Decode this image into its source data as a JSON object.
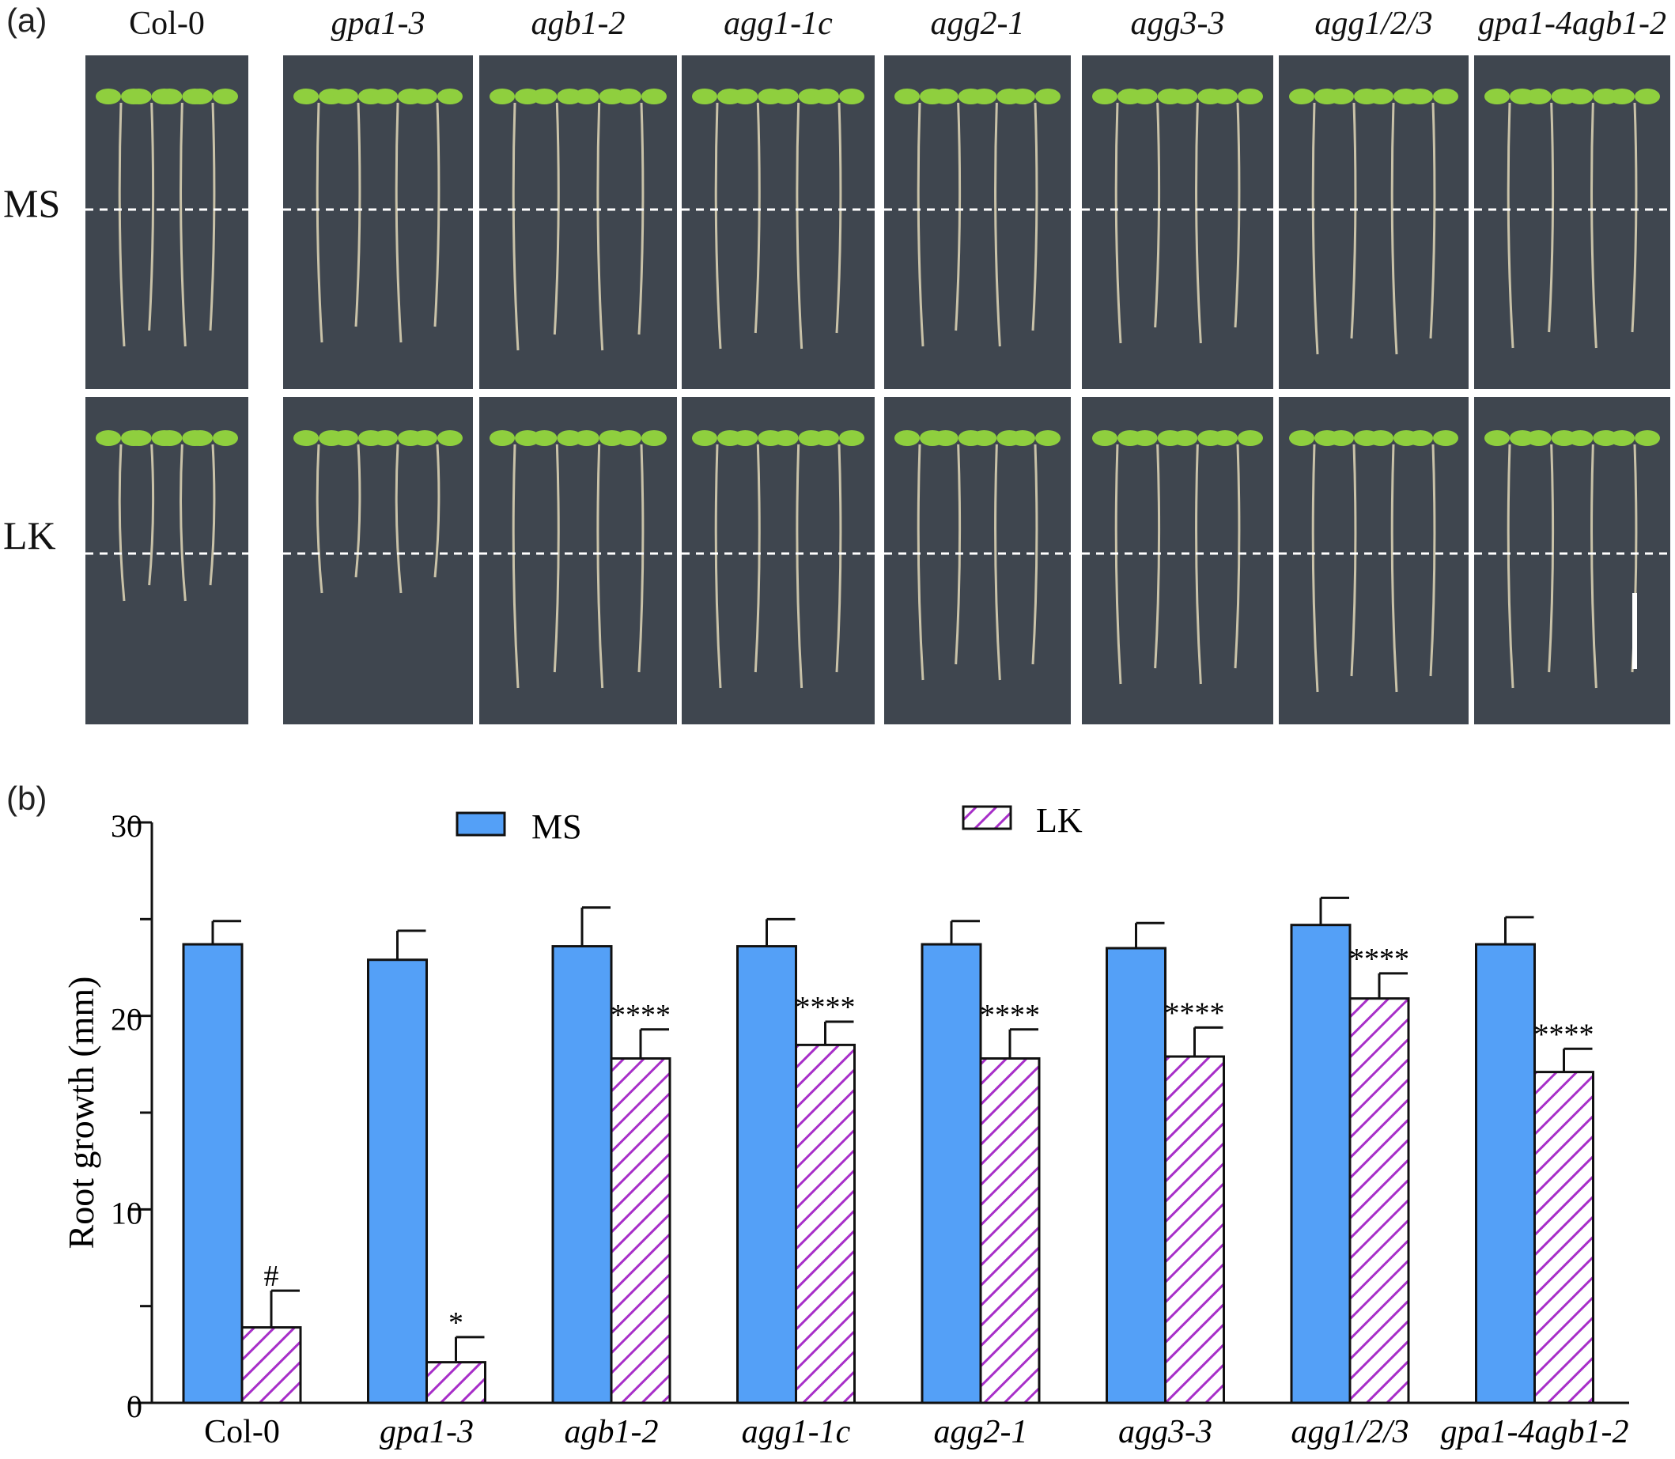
{
  "figure": {
    "panel_a_label": "(a)",
    "panel_b_label": "(b)",
    "genotypes": [
      "Col-0",
      "gpa1-3",
      "agb1-2",
      "agg1-1c",
      "agg2-1",
      "agg3-3",
      "agg1/2/3",
      "gpa1-4agb1-2"
    ],
    "italic_genotypes": [
      false,
      true,
      true,
      true,
      true,
      true,
      true,
      true
    ],
    "conditions": [
      "MS",
      "LK"
    ],
    "colors": {
      "ms_bar": "#54a0f7",
      "lk_hatch": "#a72fc8",
      "plate_bg": "#3f464f",
      "seedling": "#8fcf3e"
    }
  },
  "chart_data": {
    "type": "bar",
    "categories": [
      "Col-0",
      "gpa1-3",
      "agb1-2",
      "agg1-1c",
      "agg2-1",
      "agg3-3",
      "agg1/2/3",
      "gpa1-4agb1-2"
    ],
    "series": [
      {
        "name": "MS",
        "values": [
          23.7,
          22.9,
          23.6,
          23.6,
          23.7,
          23.5,
          24.7,
          23.7
        ],
        "errors": [
          1.2,
          1.5,
          2.0,
          1.4,
          1.2,
          1.3,
          1.4,
          1.4
        ]
      },
      {
        "name": "LK",
        "values": [
          3.9,
          2.1,
          17.8,
          18.5,
          17.8,
          17.9,
          20.9,
          17.1
        ],
        "errors": [
          1.9,
          1.3,
          1.5,
          1.2,
          1.5,
          1.5,
          1.3,
          1.2
        ]
      }
    ],
    "annotations": [
      "#",
      "*",
      "****",
      "****",
      "****",
      "****",
      "****",
      "****"
    ],
    "title": "",
    "xlabel": "",
    "ylabel": "Root growth (mm)",
    "ylim": [
      0,
      30
    ],
    "yticks": [
      0,
      10,
      20,
      30
    ],
    "legend": "top",
    "grid": false
  }
}
